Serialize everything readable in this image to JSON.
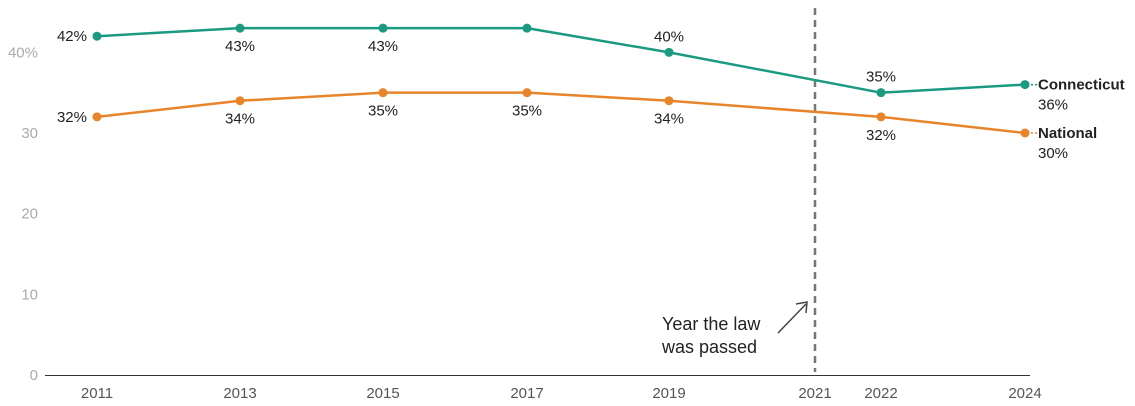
{
  "chart_data": {
    "type": "line",
    "x": [
      2011,
      2013,
      2015,
      2017,
      2019,
      2022,
      2024
    ],
    "x_ticks": [
      "2011",
      "2013",
      "2015",
      "2017",
      "2019",
      "2021",
      "2022",
      "2024"
    ],
    "y_ticks": [
      "0",
      "10",
      "20",
      "30",
      "40%"
    ],
    "ylim": [
      0,
      45
    ],
    "grid": false,
    "series": [
      {
        "name": "Connecticut",
        "values": [
          42,
          43,
          43,
          43,
          40,
          35,
          36
        ],
        "labels": [
          "42%",
          "43%",
          "43%",
          "",
          "40%",
          "35%",
          "36%"
        ],
        "color": "#1a9a80"
      },
      {
        "name": "National",
        "values": [
          32,
          34,
          35,
          35,
          34,
          32,
          30
        ],
        "labels": [
          "32%",
          "34%",
          "35%",
          "35%",
          "34%",
          "32%",
          "30%"
        ],
        "color": "#e8852b"
      }
    ],
    "reference_line": {
      "x": 2021,
      "color": "#777777"
    },
    "annotation": {
      "lines": [
        "Year the law",
        "was passed"
      ]
    }
  }
}
